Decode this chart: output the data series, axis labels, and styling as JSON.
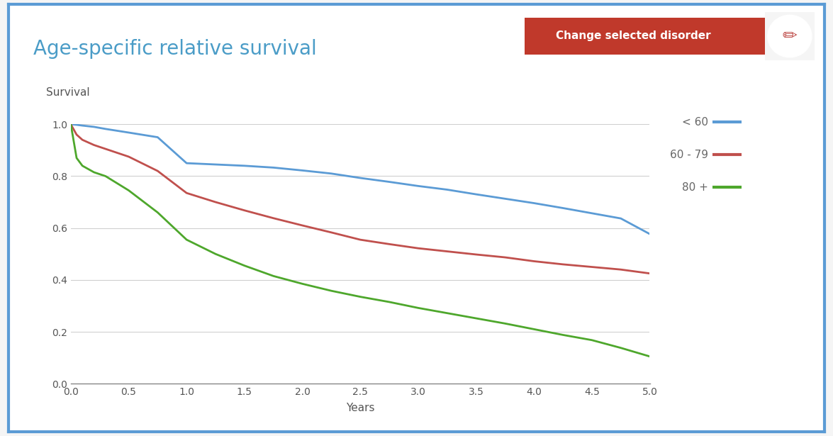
{
  "title": "Age-specific relative survival",
  "ylabel": "Survival",
  "xlabel": "Years",
  "background_color": "#ffffff",
  "outer_background": "#f5f5f5",
  "border_color": "#5b9bd5",
  "title_color": "#4a9cc7",
  "ylabel_color": "#555555",
  "xlabel_color": "#555555",
  "tick_color": "#555555",
  "grid_color": "#d0d0d0",
  "xlim": [
    0,
    5.0
  ],
  "ylim": [
    0.0,
    1.0
  ],
  "xticks": [
    0.0,
    0.5,
    1.0,
    1.5,
    2.0,
    2.5,
    3.0,
    3.5,
    4.0,
    4.5,
    5.0
  ],
  "yticks": [
    0.0,
    0.2,
    0.4,
    0.6,
    0.8,
    1.0
  ],
  "legend_labels": [
    "< 60",
    "60 - 79",
    "80 +"
  ],
  "legend_colors": [
    "#5b9bd5",
    "#c0504d",
    "#4ea72c"
  ],
  "series": {
    "lt60": {
      "x": [
        0.0,
        0.05,
        0.1,
        0.2,
        0.3,
        0.5,
        0.75,
        1.0,
        1.25,
        1.5,
        1.75,
        2.0,
        2.25,
        2.5,
        2.75,
        3.0,
        3.25,
        3.5,
        3.75,
        4.0,
        4.25,
        4.5,
        4.75,
        5.0
      ],
      "y": [
        1.0,
        0.998,
        0.995,
        0.99,
        0.982,
        0.968,
        0.95,
        0.85,
        0.845,
        0.84,
        0.833,
        0.822,
        0.81,
        0.793,
        0.778,
        0.762,
        0.748,
        0.73,
        0.713,
        0.696,
        0.677,
        0.657,
        0.637,
        0.577
      ],
      "color": "#5b9bd5",
      "linewidth": 2.0
    },
    "age60_79": {
      "x": [
        0.0,
        0.05,
        0.1,
        0.2,
        0.3,
        0.5,
        0.75,
        1.0,
        1.25,
        1.5,
        1.75,
        2.0,
        2.25,
        2.5,
        2.75,
        3.0,
        3.25,
        3.5,
        3.75,
        4.0,
        4.25,
        4.5,
        4.75,
        5.0
      ],
      "y": [
        1.0,
        0.96,
        0.94,
        0.92,
        0.905,
        0.875,
        0.82,
        0.735,
        0.7,
        0.668,
        0.638,
        0.61,
        0.583,
        0.555,
        0.538,
        0.522,
        0.51,
        0.498,
        0.487,
        0.472,
        0.46,
        0.45,
        0.44,
        0.425
      ],
      "color": "#c0504d",
      "linewidth": 2.0
    },
    "age80plus": {
      "x": [
        0.0,
        0.05,
        0.1,
        0.2,
        0.3,
        0.5,
        0.75,
        1.0,
        1.25,
        1.5,
        1.75,
        2.0,
        2.25,
        2.5,
        2.75,
        3.0,
        3.25,
        3.5,
        3.75,
        4.0,
        4.25,
        4.5,
        4.75,
        5.0
      ],
      "y": [
        1.0,
        0.87,
        0.84,
        0.815,
        0.8,
        0.745,
        0.66,
        0.555,
        0.5,
        0.455,
        0.415,
        0.385,
        0.358,
        0.335,
        0.315,
        0.292,
        0.272,
        0.252,
        0.232,
        0.21,
        0.188,
        0.168,
        0.138,
        0.105
      ],
      "color": "#4ea72c",
      "linewidth": 2.0
    }
  },
  "button_color": "#c0392b",
  "button_text": "Change selected disorder",
  "button_text_color": "#ffffff",
  "pencil_circle_color": "#ffffff"
}
